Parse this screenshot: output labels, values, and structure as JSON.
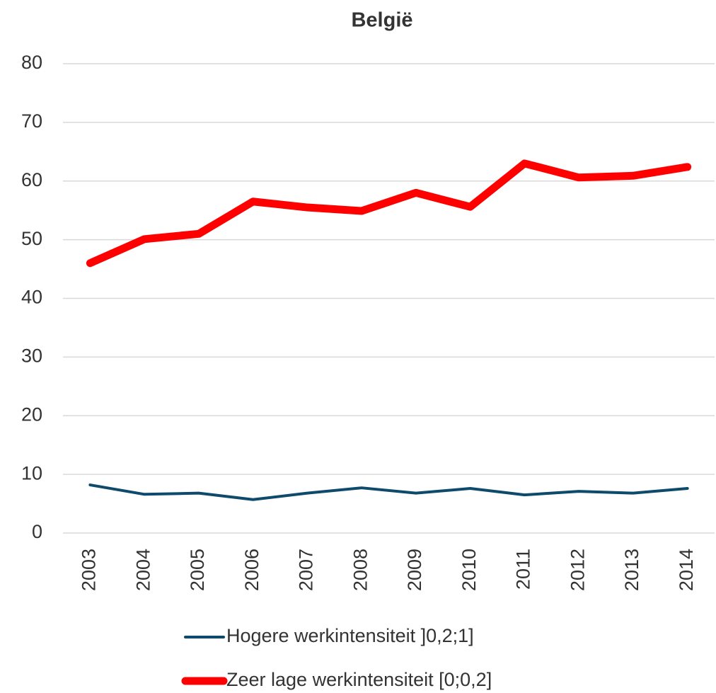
{
  "chart_data": {
    "type": "line",
    "title": "België",
    "categories": [
      "2003",
      "2004",
      "2005",
      "2006",
      "2007",
      "2008",
      "2009",
      "2010",
      "2011",
      "2012",
      "2013",
      "2014"
    ],
    "series": [
      {
        "name": "Hogere werkintensiteit ]0,2;1]",
        "color": "#0e4a6b",
        "width": 4,
        "values": [
          8.2,
          6.6,
          6.8,
          5.7,
          6.8,
          7.7,
          6.8,
          7.6,
          6.5,
          7.1,
          6.8,
          7.6
        ]
      },
      {
        "name": "Zeer lage werkintensiteit [0;0,2]",
        "color": "#ff0000",
        "width": 11,
        "values": [
          46,
          50.1,
          51,
          56.5,
          55.5,
          54.9,
          58,
          55.6,
          63,
          60.6,
          60.9,
          62.4
        ]
      }
    ],
    "ylim": [
      0,
      80
    ],
    "yticks": [
      0,
      10,
      20,
      30,
      40,
      50,
      60,
      70,
      80
    ],
    "grid": true
  }
}
